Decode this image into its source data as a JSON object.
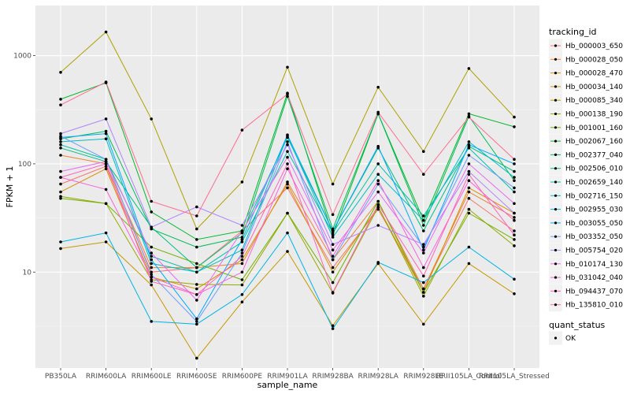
{
  "chart_data": {
    "type": "line",
    "title": "",
    "xlabel": "sample_name",
    "ylabel": "FPKM + 1",
    "y_scale": "log10",
    "ylim": [
      1.3,
      2900
    ],
    "y_ticks": [
      10,
      100,
      1000
    ],
    "y_tick_labels": [
      "10",
      "100",
      "1000"
    ],
    "grid": true,
    "background": "#ebebeb",
    "categories": [
      "PB350LA",
      "RRIM600LA",
      "RRIM600LE",
      "RRIM600SE",
      "RRIM600PE",
      "RRIM901LA",
      "RRIM928BA",
      "RRIM928LA",
      "RRIM928LE",
      "RRII105LA_Control",
      "RRII105LA_Stressed"
    ],
    "legend": {
      "position": "right",
      "title": "tracking_id",
      "point_title": "quant_status",
      "point_label": "OK"
    },
    "series": [
      {
        "name": "Hb_000003_650",
        "color": "#F8766D",
        "values": [
          65,
          95,
          10,
          11,
          24,
          60,
          11,
          38,
          7,
          48,
          24
        ]
      },
      {
        "name": "Hb_000028_050",
        "color": "#EC8239",
        "values": [
          120,
          100,
          11,
          11,
          12,
          68,
          13,
          45,
          7,
          55,
          32
        ]
      },
      {
        "name": "Hb_000028_470",
        "color": "#DB8E00",
        "values": [
          55,
          90,
          9,
          7,
          13,
          65,
          10,
          40,
          6.5,
          60,
          35
        ]
      },
      {
        "name": "Hb_000034_140",
        "color": "#C79800",
        "values": [
          16.5,
          19,
          7.6,
          1.6,
          5.3,
          15.5,
          3.2,
          12,
          3.3,
          12,
          6.3
        ]
      },
      {
        "name": "Hb_000085_340",
        "color": "#AFA100",
        "values": [
          700,
          1650,
          260,
          25,
          68,
          780,
          65,
          510,
          130,
          760,
          270
        ]
      },
      {
        "name": "Hb_000138_190",
        "color": "#96A900",
        "values": [
          50,
          43,
          8.5,
          7.7,
          7.6,
          35,
          6.4,
          40,
          6,
          38,
          17.5
        ]
      },
      {
        "name": "Hb_001001_160",
        "color": "#72B000",
        "values": [
          48,
          43,
          17,
          12,
          8.5,
          35,
          8,
          45,
          6.5,
          35,
          20
        ]
      },
      {
        "name": "Hb_002067_160",
        "color": "#00B929",
        "values": [
          395,
          560,
          36,
          20,
          24,
          450,
          22,
          290,
          30,
          290,
          220
        ]
      },
      {
        "name": "Hb_002377_040",
        "color": "#00BC56",
        "values": [
          170,
          200,
          25,
          17,
          21,
          420,
          25,
          290,
          27,
          275,
          70
        ]
      },
      {
        "name": "Hb_002506_010",
        "color": "#00BF80",
        "values": [
          140,
          105,
          26,
          11,
          23,
          175,
          24,
          140,
          24,
          145,
          85
        ]
      },
      {
        "name": "Hb_002659_140",
        "color": "#00C0A5",
        "values": [
          150,
          110,
          14,
          10,
          19,
          130,
          23,
          100,
          33,
          140,
          55
        ]
      },
      {
        "name": "Hb_002716_150",
        "color": "#00BCC7",
        "values": [
          160,
          170,
          12,
          10,
          16,
          180,
          21,
          80,
          30,
          160,
          75
        ]
      },
      {
        "name": "Hb_002955_030",
        "color": "#00B4E5",
        "values": [
          19,
          23,
          3.5,
          3.3,
          6.2,
          23,
          3,
          12.3,
          8,
          17,
          8.6
        ]
      },
      {
        "name": "Hb_003055_050",
        "color": "#00A9FF",
        "values": [
          175,
          190,
          13,
          3.7,
          20,
          185,
          24,
          145,
          16,
          150,
          100
        ]
      },
      {
        "name": "Hb_003352_050",
        "color": "#6F9CFF",
        "values": [
          180,
          110,
          9.5,
          3.5,
          15,
          160,
          13,
          65,
          17,
          120,
          60
        ]
      },
      {
        "name": "Hb_005754_020",
        "color": "#B183FF",
        "values": [
          190,
          260,
          26,
          40,
          27,
          150,
          18,
          27,
          18,
          85,
          35
        ]
      },
      {
        "name": "Hb_010174_130",
        "color": "#E76BF3",
        "values": [
          85,
          105,
          15,
          5.5,
          24,
          115,
          16,
          55,
          15,
          100,
          43
        ]
      },
      {
        "name": "Hb_031042_040",
        "color": "#FA62DB",
        "values": [
          75,
          58,
          9,
          6.2,
          10,
          90,
          14,
          70,
          11,
          70,
          30
        ]
      },
      {
        "name": "Hb_094437_070",
        "color": "#FF62BC",
        "values": [
          75,
          100,
          8.2,
          6.2,
          14,
          100,
          6.5,
          42,
          9.2,
          80,
          22
        ]
      },
      {
        "name": "Hb_135810_010",
        "color": "#FF6C91",
        "values": [
          350,
          570,
          45,
          33,
          205,
          440,
          34,
          300,
          80,
          270,
          110
        ]
      }
    ]
  }
}
